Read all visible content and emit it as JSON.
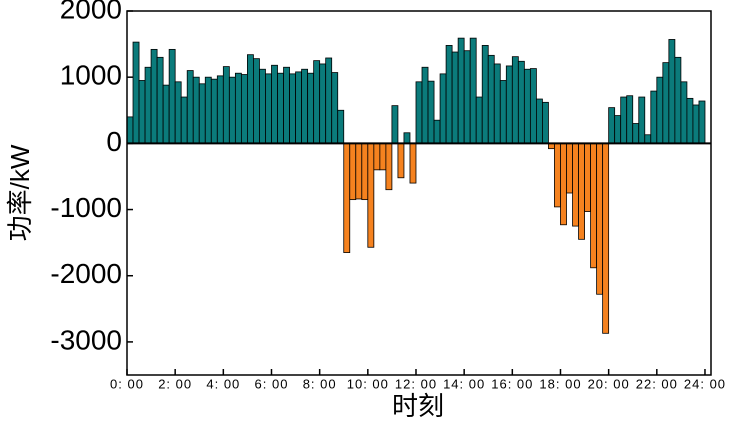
{
  "chart_data": {
    "type": "bar",
    "xlabel": "时刻",
    "ylabel": "功率/kW",
    "x": [
      0,
      0.25,
      0.5,
      0.75,
      1,
      1.25,
      1.5,
      1.75,
      2,
      2.25,
      2.5,
      2.75,
      3,
      3.25,
      3.5,
      3.75,
      4,
      4.25,
      4.5,
      4.75,
      5,
      5.25,
      5.5,
      5.75,
      6,
      6.25,
      6.5,
      6.75,
      7,
      7.25,
      7.5,
      7.75,
      8,
      8.25,
      8.5,
      8.75,
      9,
      9.25,
      9.5,
      9.75,
      10,
      10.25,
      10.5,
      10.75,
      11,
      11.25,
      11.5,
      11.75,
      12,
      12.25,
      12.5,
      12.75,
      13,
      13.25,
      13.5,
      13.75,
      14,
      14.25,
      14.5,
      14.75,
      15,
      15.25,
      15.5,
      15.75,
      16,
      16.25,
      16.5,
      16.75,
      17,
      17.25,
      17.5,
      17.75,
      18,
      18.25,
      18.5,
      18.75,
      19,
      19.25,
      19.5,
      19.75,
      20,
      20.25,
      20.5,
      20.75,
      21,
      21.25,
      21.5,
      21.75,
      22,
      22.25,
      22.5,
      22.75,
      23,
      23.25,
      23.5,
      23.75
    ],
    "values": [
      400,
      1530,
      950,
      1150,
      1420,
      1300,
      880,
      1420,
      930,
      700,
      1100,
      1000,
      900,
      1000,
      970,
      1020,
      1160,
      1000,
      1060,
      1040,
      1340,
      1280,
      1120,
      1050,
      1180,
      1060,
      1150,
      1050,
      1080,
      1120,
      1060,
      1250,
      1200,
      1290,
      1070,
      500,
      -1650,
      -850,
      -840,
      -850,
      -1570,
      -400,
      -400,
      -700,
      570,
      -520,
      160,
      -600,
      930,
      1150,
      940,
      350,
      1050,
      1480,
      1380,
      1590,
      1400,
      1590,
      700,
      1480,
      1330,
      1200,
      950,
      1170,
      1310,
      1240,
      1120,
      1130,
      670,
      620,
      -80,
      -960,
      -1230,
      -750,
      -1250,
      -1450,
      -1030,
      -1880,
      -2280,
      -2870,
      540,
      420,
      700,
      720,
      300,
      700,
      130,
      790,
      1000,
      1220,
      1570,
      1300,
      930,
      680,
      580,
      640
    ],
    "bar_width": 0.25,
    "colors": {
      "positive": "#0b7b7b",
      "negative": "#f5821f"
    },
    "xlim": [
      0,
      24.25
    ],
    "xticks": [
      {
        "value": 0,
        "label": "0: 00"
      },
      {
        "value": 2,
        "label": "2: 00"
      },
      {
        "value": 4,
        "label": "4: 00"
      },
      {
        "value": 6,
        "label": "6: 00"
      },
      {
        "value": 8,
        "label": "8: 00"
      },
      {
        "value": 10,
        "label": "10: 00"
      },
      {
        "value": 12,
        "label": "12: 00"
      },
      {
        "value": 14,
        "label": "14: 00"
      },
      {
        "value": 16,
        "label": "16: 00"
      },
      {
        "value": 18,
        "label": "18: 00"
      },
      {
        "value": 20,
        "label": "20: 00"
      },
      {
        "value": 22,
        "label": "22: 00"
      },
      {
        "value": 24,
        "label": "24: 00"
      }
    ],
    "ylim": [
      -3500,
      2000
    ],
    "yticks": [
      -3000,
      -2000,
      -1000,
      0,
      1000,
      2000
    ],
    "grid": false
  }
}
